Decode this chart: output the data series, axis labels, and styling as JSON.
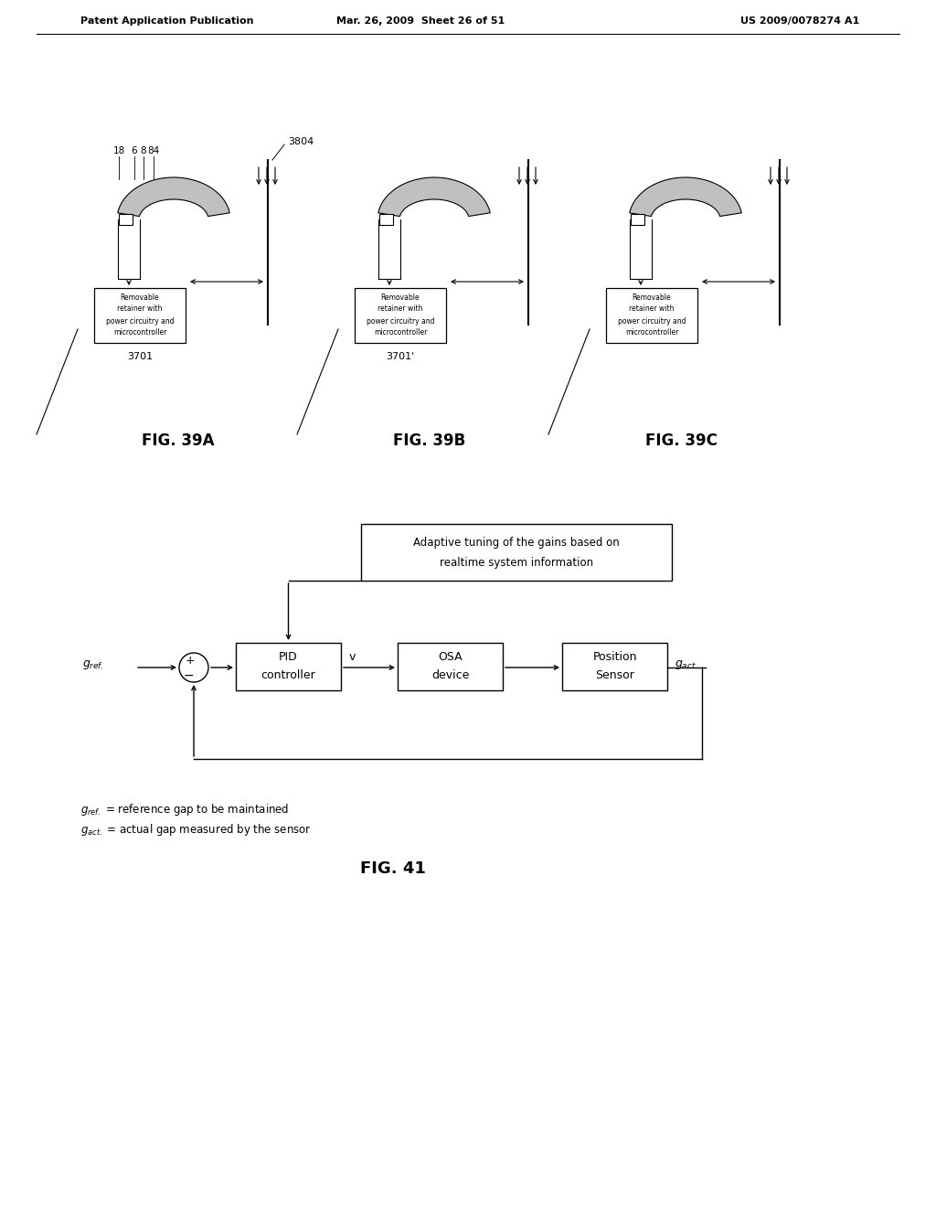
{
  "background_color": "#ffffff",
  "header_left": "Patent Application Publication",
  "header_mid": "Mar. 26, 2009  Sheet 26 of 51",
  "header_right": "US 2009/0078274 A1",
  "fig39a_label": "FIG. 39A",
  "fig39b_label": "FIG. 39B",
  "fig39c_label": "FIG. 39C",
  "fig41_label": "FIG. 41",
  "lc": "#000000",
  "tc": "#000000",
  "box_pid_line1": "PID",
  "box_pid_line2": "controller",
  "box_osa_line1": "OSA",
  "box_osa_line2": "device",
  "box_pos_line1": "Position",
  "box_pos_line2": "Sensor",
  "box_adap_line1": "Adaptive tuning of the gains based on",
  "box_adap_line2": "realtime system information",
  "box_retainer_lines": [
    "Removable",
    "retainer with",
    "power circuitry and",
    "microcontroller"
  ],
  "label_3804": "3804",
  "label_3701": "3701",
  "label_3701p": "3701'",
  "label_18": "18",
  "label_6": "6",
  "label_8": "8",
  "label_84": "84",
  "label_v": "v",
  "note1": "= reference gap to be maintained",
  "note2": "= actual gap measured by the sensor"
}
